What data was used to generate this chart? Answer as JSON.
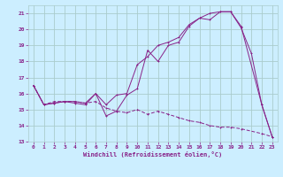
{
  "xlabel": "Windchill (Refroidissement éolien,°C)",
  "bg_color": "#cceeff",
  "grid_color": "#aacccc",
  "line_color": "#882288",
  "xlim": [
    -0.5,
    23.5
  ],
  "ylim": [
    13,
    21.5
  ],
  "yticks": [
    13,
    14,
    15,
    16,
    17,
    18,
    19,
    20,
    21
  ],
  "xticks": [
    0,
    1,
    2,
    3,
    4,
    5,
    6,
    7,
    8,
    9,
    10,
    11,
    12,
    13,
    14,
    15,
    16,
    17,
    18,
    19,
    20,
    21,
    22,
    23
  ],
  "line1_x": [
    0,
    1,
    2,
    3,
    4,
    5,
    6,
    7,
    8,
    9,
    10,
    11,
    12,
    13,
    14,
    15,
    16,
    17,
    18,
    19,
    20,
    21,
    22,
    23
  ],
  "line1_y": [
    16.5,
    15.3,
    15.4,
    15.5,
    15.4,
    15.3,
    16.0,
    14.6,
    14.9,
    15.9,
    16.3,
    18.7,
    18.0,
    19.0,
    19.2,
    20.2,
    20.7,
    20.6,
    21.1,
    21.1,
    20.1,
    18.5,
    15.3,
    13.3
  ],
  "line2_x": [
    0,
    1,
    2,
    3,
    4,
    5,
    6,
    7,
    8,
    9,
    10,
    11,
    12,
    13,
    14,
    15,
    16,
    17,
    18,
    19,
    20,
    22,
    23
  ],
  "line2_y": [
    16.5,
    15.3,
    15.4,
    15.5,
    15.5,
    15.4,
    16.0,
    15.3,
    15.9,
    16.0,
    17.8,
    18.3,
    19.0,
    19.2,
    19.5,
    20.3,
    20.7,
    21.0,
    21.1,
    21.1,
    20.2,
    15.3,
    13.3
  ],
  "line3_x": [
    0,
    1,
    2,
    3,
    4,
    5,
    6,
    7,
    8,
    9,
    10,
    11,
    12,
    13,
    14,
    15,
    16,
    17,
    18,
    19,
    20,
    22,
    23
  ],
  "line3_y": [
    16.5,
    15.3,
    15.5,
    15.5,
    15.5,
    15.4,
    15.5,
    15.1,
    14.9,
    14.8,
    15.0,
    14.7,
    14.9,
    14.7,
    14.5,
    14.3,
    14.2,
    14.0,
    13.9,
    13.9,
    13.8,
    13.5,
    13.3
  ]
}
